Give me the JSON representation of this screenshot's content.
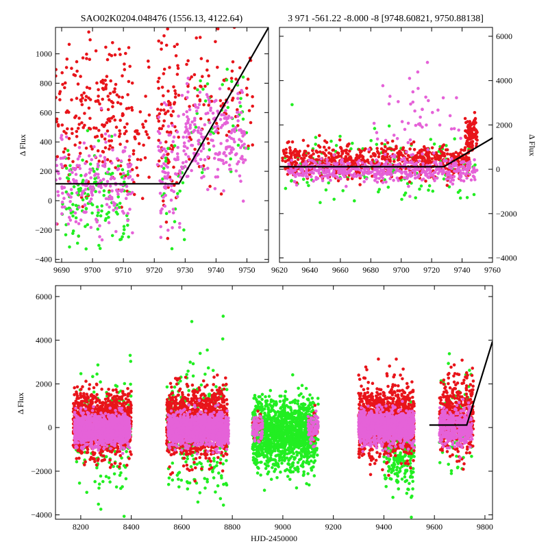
{
  "colors": {
    "series_red": "#e8141a",
    "series_green": "#22ee22",
    "series_magenta": "#e562d8",
    "model_line": "#000000"
  },
  "chart_data": [
    {
      "type": "scatter",
      "title": "SAO02K0204.048476 (1556.13, 4122.64)",
      "xlabel": "",
      "ylabel": "Δ Flux",
      "xlim": [
        9688,
        9757
      ],
      "ylim": [
        -420,
        1180
      ],
      "xticks": [
        9690,
        9700,
        9710,
        9720,
        9730,
        9740,
        9750
      ],
      "yticks": [
        -400,
        -200,
        0,
        200,
        400,
        600,
        800,
        1000
      ],
      "ytick_side": "left",
      "series": [
        {
          "name": "red",
          "color": "#e8141a",
          "clusters": [
            {
              "x_from": 9688,
              "x_to": 9712,
              "count": 220,
              "y_center": 600,
              "y_spread": 550
            },
            {
              "x_from": 9712,
              "x_to": 9719,
              "count": 40,
              "y_center": 500,
              "y_spread": 600
            },
            {
              "x_from": 9721,
              "x_to": 9728,
              "count": 90,
              "y_center": 550,
              "y_spread": 600
            },
            {
              "x_from": 9730,
              "x_to": 9752,
              "count": 90,
              "y_center": 700,
              "y_spread": 520
            }
          ]
        },
        {
          "name": "green",
          "color": "#22ee22",
          "clusters": [
            {
              "x_from": 9690,
              "x_to": 9712,
              "count": 140,
              "y_center": 20,
              "y_spread": 330
            },
            {
              "x_from": 9722,
              "x_to": 9730,
              "count": 20,
              "y_center": 50,
              "y_spread": 300
            },
            {
              "x_from": 9732,
              "x_to": 9751,
              "count": 40,
              "y_center": 600,
              "y_spread": 500
            }
          ]
        },
        {
          "name": "magenta",
          "color": "#e562d8",
          "clusters": [
            {
              "x_from": 9688,
              "x_to": 9713,
              "count": 200,
              "y_center": 120,
              "y_spread": 320
            },
            {
              "x_from": 9721,
              "x_to": 9729,
              "count": 80,
              "y_center": 200,
              "y_spread": 300
            },
            {
              "x_from": 9729,
              "x_to": 9750,
              "count": 220,
              "y_center": 430,
              "y_spread": 330
            }
          ]
        }
      ],
      "model": {
        "x": [
          9688,
          9728,
          9757
        ],
        "y": [
          115,
          115,
          1180
        ]
      }
    },
    {
      "type": "scatter",
      "title": "3 971 -561.22 -8.000 -8 [9748.60821, 9750.88138]",
      "xlabel": "",
      "ylabel": "Δ Flux",
      "xlim": [
        9620,
        9760
      ],
      "ylim": [
        -4200,
        6400
      ],
      "xticks": [
        9620,
        9640,
        9660,
        9680,
        9700,
        9720,
        9740,
        9760
      ],
      "yticks": [
        -4000,
        -2000,
        0,
        2000,
        4000,
        6000
      ],
      "ytick_side": "right",
      "series": [
        {
          "name": "green",
          "color": "#22ee22",
          "clusters": [
            {
              "x_from": 9622,
              "x_to": 9750,
              "count": 150,
              "y_center": 0,
              "y_spread": 1700
            }
          ]
        },
        {
          "name": "red",
          "color": "#e8141a",
          "clusters": [
            {
              "x_from": 9622,
              "x_to": 9745,
              "count": 700,
              "y_center": 400,
              "y_spread": 700
            },
            {
              "x_from": 9742,
              "x_to": 9750,
              "count": 90,
              "y_center": 1600,
              "y_spread": 800
            }
          ]
        },
        {
          "name": "magenta",
          "color": "#e562d8",
          "clusters": [
            {
              "x_from": 9625,
              "x_to": 9750,
              "count": 500,
              "y_center": -50,
              "y_spread": 500
            },
            {
              "x_from": 9680,
              "x_to": 9740,
              "count": 60,
              "y_center": 1800,
              "y_spread": 2600
            }
          ]
        }
      ],
      "model": {
        "x": [
          9620,
          9728,
          9760
        ],
        "y": [
          115,
          115,
          1410
        ]
      }
    },
    {
      "type": "scatter",
      "title": "",
      "xlabel": "HJD-2450000",
      "ylabel": "Δ Flux",
      "xlim": [
        8100,
        9830
      ],
      "ylim": [
        -4200,
        6500
      ],
      "xticks": [
        8200,
        8400,
        8600,
        8800,
        9000,
        9200,
        9400,
        9600,
        9800
      ],
      "yticks": [
        -4000,
        -2000,
        0,
        2000,
        4000,
        6000
      ],
      "ytick_side": "left",
      "series": [
        {
          "name": "green",
          "color": "#22ee22",
          "clusters": [
            {
              "x_from": 8180,
              "x_to": 8400,
              "count": 180,
              "y_center": -300,
              "y_spread": 2600
            },
            {
              "x_from": 8540,
              "x_to": 8780,
              "count": 260,
              "y_center": -100,
              "y_spread": 3200
            },
            {
              "x_from": 8880,
              "x_to": 9130,
              "count": 1500,
              "y_center": -300,
              "y_spread": 1500
            },
            {
              "x_from": 9120,
              "x_to": 9140,
              "count": 20,
              "y_center": 0,
              "y_spread": 1500
            },
            {
              "x_from": 9400,
              "x_to": 9520,
              "count": 250,
              "y_center": -1200,
              "y_spread": 1800
            },
            {
              "x_from": 9620,
              "x_to": 9750,
              "count": 80,
              "y_center": 0,
              "y_spread": 2500
            }
          ]
        },
        {
          "name": "red",
          "color": "#e8141a",
          "clusters": [
            {
              "x_from": 8170,
              "x_to": 8400,
              "count": 1300,
              "y_center": 200,
              "y_spread": 1300
            },
            {
              "x_from": 8540,
              "x_to": 8780,
              "count": 1300,
              "y_center": 200,
              "y_spread": 1500
            },
            {
              "x_from": 8880,
              "x_to": 8920,
              "count": 25,
              "y_center": 0,
              "y_spread": 800
            },
            {
              "x_from": 9100,
              "x_to": 9140,
              "count": 25,
              "y_center": 0,
              "y_spread": 800
            },
            {
              "x_from": 9300,
              "x_to": 9520,
              "count": 1200,
              "y_center": 300,
              "y_spread": 1500
            },
            {
              "x_from": 9620,
              "x_to": 9755,
              "count": 450,
              "y_center": 500,
              "y_spread": 1600
            }
          ]
        },
        {
          "name": "magenta",
          "color": "#e562d8",
          "clusters": [
            {
              "x_from": 8175,
              "x_to": 8395,
              "count": 1400,
              "y_center": -100,
              "y_spread": 700
            },
            {
              "x_from": 8545,
              "x_to": 8785,
              "count": 1400,
              "y_center": -100,
              "y_spread": 700
            },
            {
              "x_from": 8880,
              "x_to": 8920,
              "count": 80,
              "y_center": 0,
              "y_spread": 600
            },
            {
              "x_from": 9100,
              "x_to": 9140,
              "count": 80,
              "y_center": 0,
              "y_spread": 600
            },
            {
              "x_from": 9300,
              "x_to": 9520,
              "count": 1400,
              "y_center": 0,
              "y_spread": 700
            },
            {
              "x_from": 9620,
              "x_to": 9750,
              "count": 450,
              "y_center": 0,
              "y_spread": 800
            }
          ]
        }
      ],
      "model": {
        "x": [
          9580,
          9728,
          9830
        ],
        "y": [
          115,
          115,
          3950
        ]
      }
    }
  ]
}
